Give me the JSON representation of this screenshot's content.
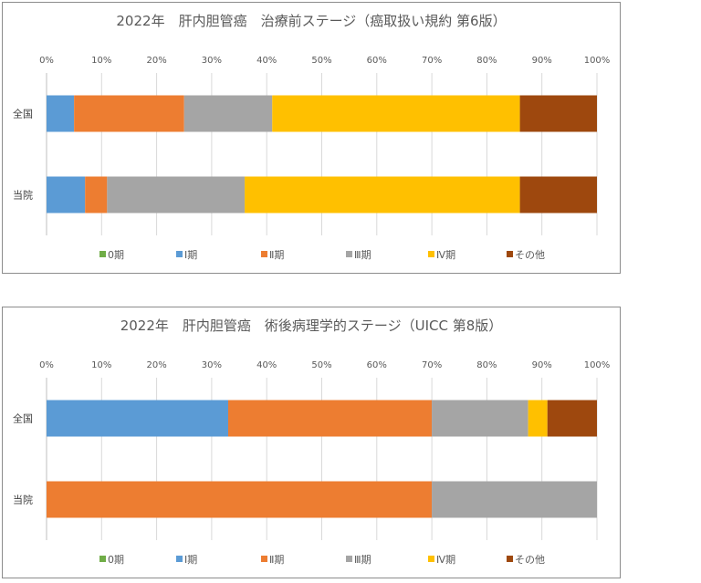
{
  "chart_data": [
    {
      "type": "bar",
      "orientation": "horizontal",
      "stacked": "percent",
      "title": "2022年　肝内胆管癌　治療前ステージ（癌取扱い規約 第6版）",
      "categories": [
        "全国",
        "当院"
      ],
      "x_ticks": [
        "0%",
        "10%",
        "20%",
        "30%",
        "40%",
        "50%",
        "60%",
        "70%",
        "80%",
        "90%",
        "100%"
      ],
      "xlim": [
        0,
        100
      ],
      "grid": true,
      "legend_position": "bottom",
      "series": [
        {
          "name": "0期",
          "color": "#70ad47",
          "values": [
            0,
            0
          ]
        },
        {
          "name": "Ⅰ期",
          "color": "#5b9bd5",
          "values": [
            5,
            7
          ]
        },
        {
          "name": "Ⅱ期",
          "color": "#ed7d31",
          "values": [
            20,
            4
          ]
        },
        {
          "name": "Ⅲ期",
          "color": "#a5a5a5",
          "values": [
            16,
            25
          ]
        },
        {
          "name": "Ⅳ期",
          "color": "#ffc000",
          "values": [
            45,
            50
          ]
        },
        {
          "name": "その他",
          "color": "#9e480e",
          "values": [
            14,
            14
          ]
        }
      ]
    },
    {
      "type": "bar",
      "orientation": "horizontal",
      "stacked": "percent",
      "title": "2022年　肝内胆管癌　術後病理学的ステージ（UICC 第8版）",
      "categories": [
        "全国",
        "当院"
      ],
      "x_ticks": [
        "0%",
        "10%",
        "20%",
        "30%",
        "40%",
        "50%",
        "60%",
        "70%",
        "80%",
        "90%",
        "100%"
      ],
      "xlim": [
        0,
        100
      ],
      "grid": true,
      "legend_position": "bottom",
      "series": [
        {
          "name": "0期",
          "color": "#70ad47",
          "values": [
            0,
            0
          ]
        },
        {
          "name": "Ⅰ期",
          "color": "#5b9bd5",
          "values": [
            33,
            0
          ]
        },
        {
          "name": "Ⅱ期",
          "color": "#ed7d31",
          "values": [
            37,
            70
          ]
        },
        {
          "name": "Ⅲ期",
          "color": "#a5a5a5",
          "values": [
            17.5,
            30
          ]
        },
        {
          "name": "Ⅳ期",
          "color": "#ffc000",
          "values": [
            3.5,
            0
          ]
        },
        {
          "name": "その他",
          "color": "#9e480e",
          "values": [
            9,
            0
          ]
        }
      ]
    }
  ]
}
